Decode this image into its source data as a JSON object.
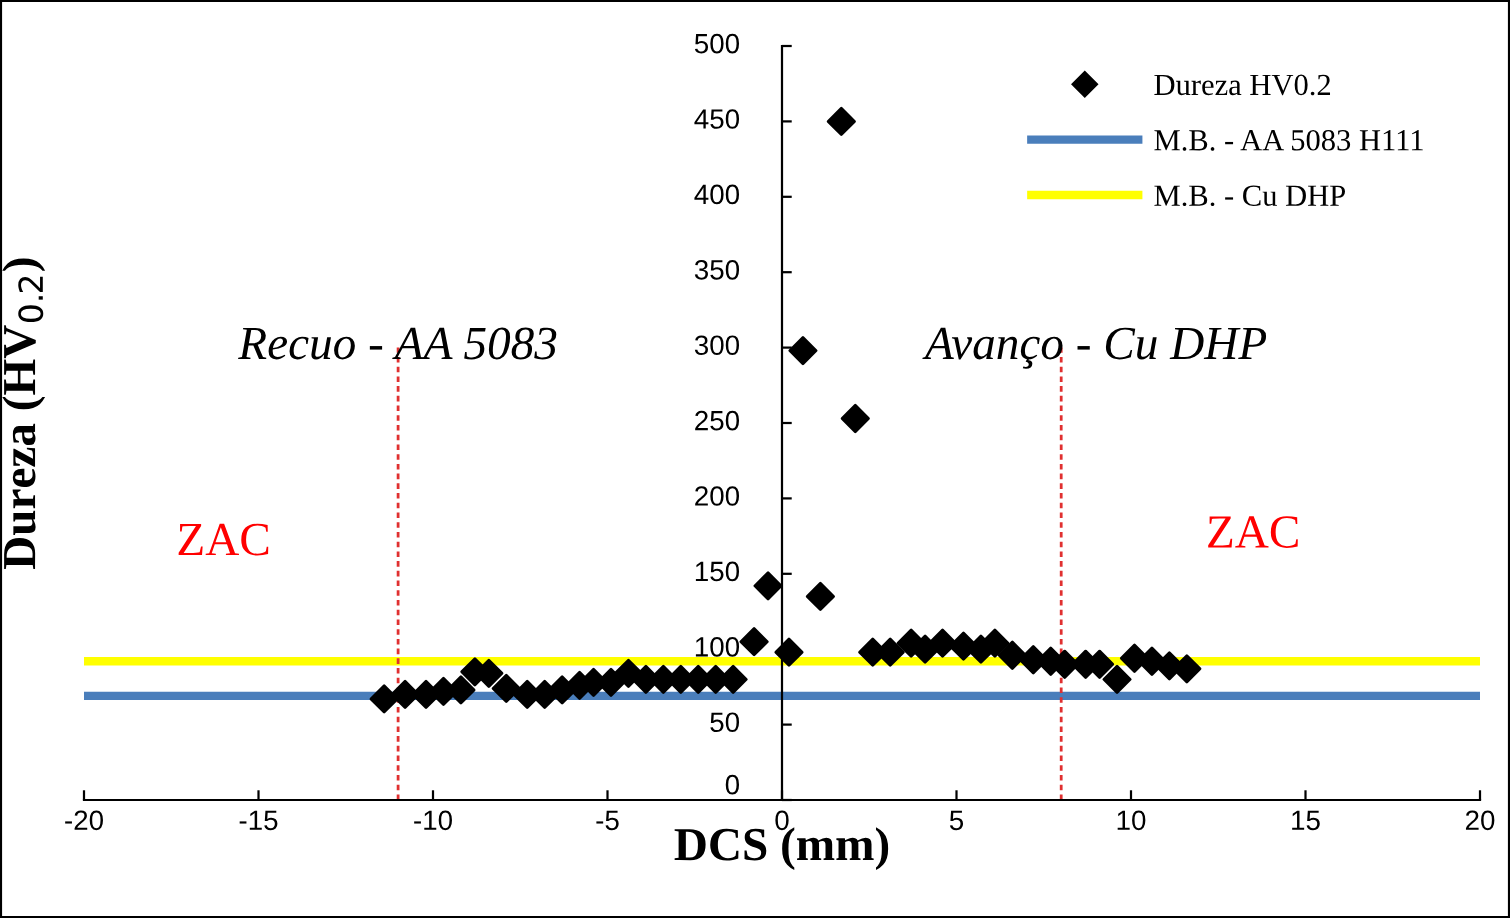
{
  "chart_data": {
    "type": "scatter",
    "xlabel": "DCS (mm)",
    "ylabel": "Dureza (HV$_{0.2}$)",
    "xlim": [
      -20,
      20
    ],
    "xticks": [
      -20,
      -15,
      -10,
      -5,
      0,
      5,
      10,
      15,
      20
    ],
    "ylim": [
      0,
      500
    ],
    "yticks": [
      0,
      50,
      100,
      150,
      200,
      250,
      300,
      350,
      400,
      450,
      500
    ],
    "grid": false,
    "legend": "top right",
    "marker": "diamond",
    "series": [
      {
        "name": "Dureza HV0.2",
        "color": "#000000",
        "x": [
          -11.4,
          -10.8,
          -10.2,
          -9.7,
          -9.2,
          -8.8,
          -8.4,
          -7.9,
          -7.3,
          -6.8,
          -6.3,
          -5.8,
          -5.4,
          -4.9,
          -4.4,
          -3.9,
          -3.4,
          -2.9,
          -2.4,
          -1.9,
          -1.4,
          -0.8,
          -0.4,
          0.2,
          0.6,
          1.1,
          1.7,
          2.1,
          2.6,
          3.1,
          3.7,
          4.1,
          4.6,
          5.2,
          5.7,
          6.1,
          6.6,
          7.2,
          7.7,
          8.1,
          8.7,
          9.1,
          9.6,
          10.1,
          10.6,
          11.1,
          11.6
        ],
        "values": [
          67,
          70,
          70,
          72,
          73,
          85,
          84,
          74,
          70,
          70,
          73,
          76,
          78,
          78,
          84,
          80,
          80,
          80,
          80,
          80,
          80,
          105,
          142,
          98,
          298,
          135,
          450,
          253,
          98,
          98,
          104,
          100,
          104,
          102,
          100,
          104,
          96,
          93,
          92,
          90,
          90,
          90,
          80,
          94,
          92,
          89,
          87
        ]
      }
    ],
    "ref_lines": [
      {
        "axis": "y",
        "value": 69,
        "label": "M.B. - AA 5083 H111",
        "color": "#4a7ebb",
        "line_style": "solid"
      },
      {
        "axis": "y",
        "value": 92,
        "label": "M.B. - Cu DHP",
        "color": "#ffff00",
        "line_style": "solid"
      },
      {
        "axis": "x",
        "value": -11,
        "color": "#e03030",
        "line_style": "dashed"
      },
      {
        "axis": "x",
        "value": 8,
        "color": "#e03030",
        "line_style": "dashed"
      }
    ],
    "annotations": [
      "Recuo - AA 5083",
      "Avanço - Cu DHP",
      "ZAC",
      "ZAC"
    ]
  }
}
